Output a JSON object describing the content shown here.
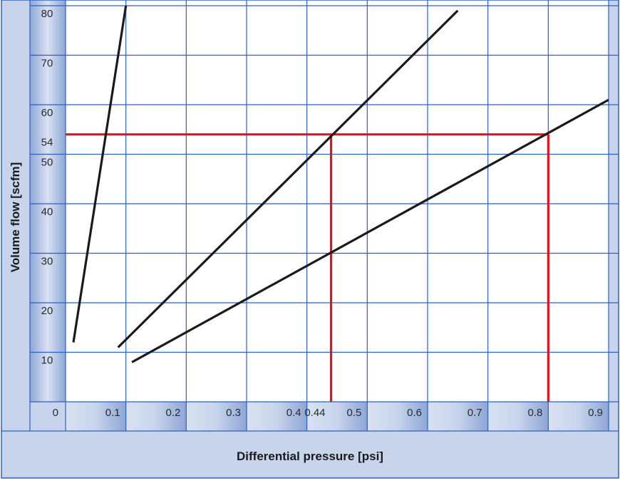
{
  "chart_data": {
    "type": "line",
    "xlabel": "Differential pressure [psi]",
    "ylabel": "Volume flow [scfm]",
    "xlim": [
      0,
      0.9
    ],
    "ylim": [
      0,
      80
    ],
    "grid": true,
    "x_ticks": [
      "0",
      "0.1",
      "0.2",
      "0.3",
      "0.4",
      "0.44",
      "0.5",
      "0.6",
      "0.7",
      "0.8",
      "0.9"
    ],
    "y_ticks": [
      "10",
      "20",
      "30",
      "40",
      "50",
      "54",
      "60",
      "70",
      "80"
    ],
    "x_tick_values": [
      0,
      0.1,
      0.2,
      0.3,
      0.4,
      0.44,
      0.5,
      0.6,
      0.7,
      0.8,
      0.9
    ],
    "y_tick_values": [
      10,
      20,
      30,
      40,
      50,
      54,
      60,
      70,
      80
    ],
    "x_grid": [
      0.1,
      0.2,
      0.3,
      0.4,
      0.5,
      0.6,
      0.7,
      0.8,
      0.9
    ],
    "y_grid": [
      10,
      20,
      30,
      40,
      50,
      60,
      70,
      80
    ],
    "series": [
      {
        "x": [
          0.013,
          0.1
        ],
        "y": [
          12,
          80
        ],
        "color": "#1a1a1a"
      },
      {
        "x": [
          0.087,
          0.65
        ],
        "y": [
          11,
          79
        ],
        "color": "#1a1a1a"
      },
      {
        "x": [
          0.11,
          0.9
        ],
        "y": [
          8,
          61
        ],
        "color": "#1a1a1a"
      }
    ],
    "reference_lines": {
      "color": "#e0141e",
      "horizontal": [
        {
          "y": 54,
          "x_from": 0,
          "x_to": 0.8
        }
      ],
      "vertical": [
        {
          "x": 0.44,
          "y_from": 0,
          "y_to": 54
        },
        {
          "x": 0.8,
          "y_from": 0,
          "y_to": 54
        }
      ]
    },
    "colors": {
      "grid": "#2a62c4",
      "border": "#2a62c4",
      "band": "#c7d4eb",
      "band_gradient_light": "#d9e2f2",
      "band_gradient_dark": "#8ea6d6",
      "curve": "#1a1a1a",
      "reference": "#e0141e"
    }
  }
}
